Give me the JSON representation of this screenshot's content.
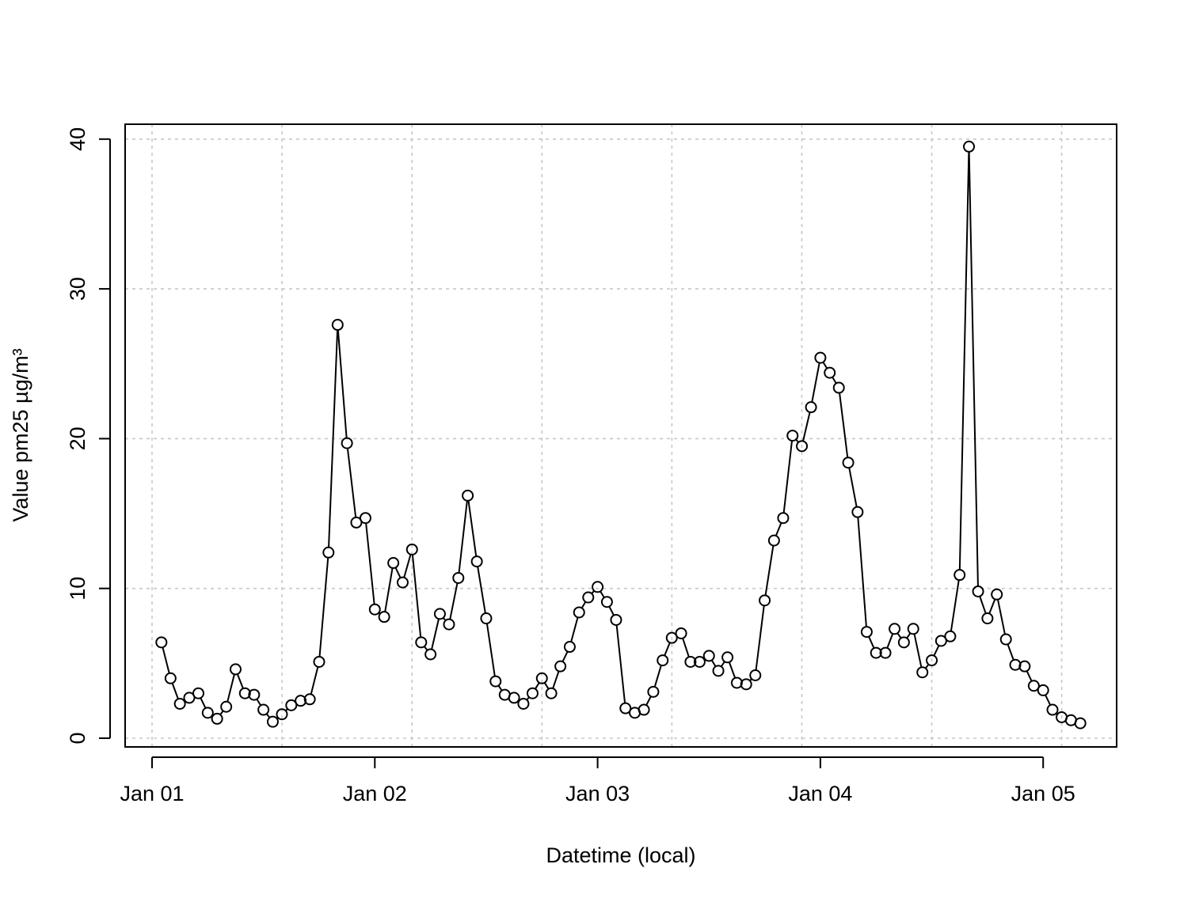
{
  "chart_data": {
    "type": "line",
    "xlabel": "Datetime (local)",
    "ylabel": "Value pm25 µg/m³",
    "x_ticks": [
      "Jan 01",
      "Jan 02",
      "Jan 03",
      "Jan 04",
      "Jan 05"
    ],
    "y_ticks": [
      0,
      10,
      20,
      30,
      40
    ],
    "xlim_days": [
      -0.12,
      4.33
    ],
    "ylim": [
      -0.5,
      41
    ],
    "grid": true,
    "marker": "open-circle",
    "series": [
      {
        "x_days": [
          0.042,
          0.083,
          0.125,
          0.167,
          0.208,
          0.25,
          0.292,
          0.333,
          0.375,
          0.417,
          0.458,
          0.5,
          0.542,
          0.583,
          0.625,
          0.667,
          0.708,
          0.75,
          0.792,
          0.833,
          0.875,
          0.917,
          0.958,
          1.0,
          1.042,
          1.083,
          1.125,
          1.167,
          1.208,
          1.25,
          1.292,
          1.333,
          1.375,
          1.417,
          1.458,
          1.5,
          1.542,
          1.583,
          1.625,
          1.667,
          1.708,
          1.75,
          1.792,
          1.833,
          1.875,
          1.917,
          1.958,
          2.0,
          2.042,
          2.083,
          2.125,
          2.167,
          2.208,
          2.25,
          2.292,
          2.333,
          2.375,
          2.417,
          2.458,
          2.5,
          2.542,
          2.583,
          2.625,
          2.667,
          2.708,
          2.75,
          2.792,
          2.833,
          2.875,
          2.917,
          2.958,
          3.0,
          3.042,
          3.083,
          3.125,
          3.167,
          3.208,
          3.25,
          3.292,
          3.333,
          3.375,
          3.417,
          3.458,
          3.5,
          3.542,
          3.583,
          3.625,
          3.667,
          3.708,
          3.75,
          3.792,
          3.833,
          3.875,
          3.917,
          3.958,
          4.0,
          4.042,
          4.083,
          4.125,
          4.167
        ],
        "values": [
          6.4,
          4.0,
          2.3,
          2.7,
          3.0,
          1.7,
          1.3,
          2.1,
          4.6,
          3.0,
          2.9,
          1.9,
          1.1,
          1.6,
          2.2,
          2.5,
          2.6,
          5.1,
          12.4,
          27.6,
          19.7,
          14.4,
          14.7,
          8.6,
          8.1,
          11.7,
          10.4,
          12.6,
          6.4,
          5.6,
          8.3,
          7.6,
          10.7,
          16.2,
          11.8,
          8.0,
          3.8,
          2.9,
          2.7,
          2.3,
          3.0,
          4.0,
          3.0,
          4.8,
          6.1,
          8.4,
          9.4,
          10.1,
          9.1,
          7.9,
          2.0,
          1.7,
          1.9,
          3.1,
          5.2,
          6.7,
          7.0,
          5.1,
          5.1,
          5.5,
          4.5,
          5.4,
          3.7,
          3.6,
          4.2,
          9.2,
          13.2,
          14.7,
          20.2,
          19.5,
          22.1,
          25.4,
          24.4,
          23.4,
          18.4,
          15.1,
          7.1,
          5.7,
          5.7,
          7.3,
          6.4,
          7.3,
          4.4,
          5.2,
          6.5,
          6.8,
          10.9,
          39.5,
          9.8,
          8.0,
          9.6,
          6.6,
          4.9,
          4.8,
          3.5,
          3.2,
          1.9,
          1.4,
          1.2,
          1.0
        ]
      }
    ]
  }
}
